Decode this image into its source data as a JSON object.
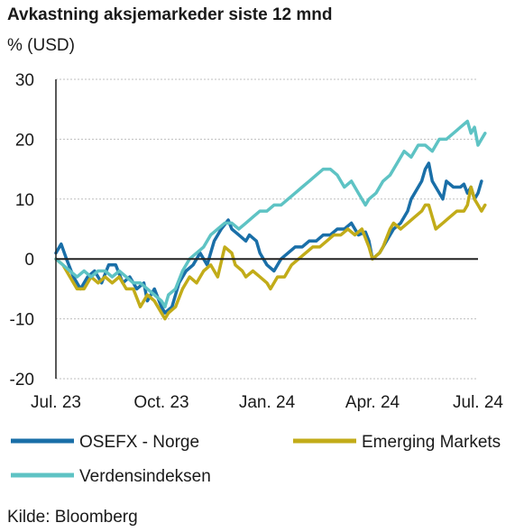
{
  "title": "Avkastning aksjemarkeder siste 12 mnd",
  "unit_label": "% (USD)",
  "source": "Kilde: Bloomberg",
  "colors": {
    "osefx": "#1a6fa8",
    "em": "#c2ac19",
    "world": "#5ec3c4",
    "axis": "#222222",
    "grid": "#bfbfbf"
  },
  "chart_data": {
    "type": "line",
    "ylim": [
      -20,
      30
    ],
    "yticks": [
      -20,
      -10,
      0,
      10,
      20,
      30
    ],
    "xlim": [
      0,
      12
    ],
    "xticks": [
      {
        "x": 0,
        "label": "Jul. 23"
      },
      {
        "x": 3,
        "label": "Oct. 23"
      },
      {
        "x": 6,
        "label": "Jan. 24"
      },
      {
        "x": 9,
        "label": "Apr. 24"
      },
      {
        "x": 12,
        "label": "Jul. 24"
      }
    ],
    "gridlines": "horizontal",
    "legend": "bottom",
    "series": [
      {
        "name": "OSEFX - Norge",
        "color_key": "osefx",
        "points": [
          [
            0,
            1
          ],
          [
            0.15,
            2.5
          ],
          [
            0.3,
            0
          ],
          [
            0.5,
            -3
          ],
          [
            0.7,
            -5
          ],
          [
            0.9,
            -3
          ],
          [
            1.1,
            -2
          ],
          [
            1.3,
            -4
          ],
          [
            1.5,
            -1
          ],
          [
            1.7,
            -1
          ],
          [
            1.9,
            -4
          ],
          [
            2.1,
            -3
          ],
          [
            2.3,
            -5
          ],
          [
            2.5,
            -4
          ],
          [
            2.6,
            -7
          ],
          [
            2.8,
            -5
          ],
          [
            3,
            -8
          ],
          [
            3.1,
            -9
          ],
          [
            3.3,
            -8
          ],
          [
            3.5,
            -4
          ],
          [
            3.7,
            -2
          ],
          [
            3.9,
            -1
          ],
          [
            4.1,
            1
          ],
          [
            4.3,
            -1
          ],
          [
            4.5,
            3
          ],
          [
            4.7,
            5
          ],
          [
            4.9,
            6.5
          ],
          [
            5.0,
            5
          ],
          [
            5.2,
            4
          ],
          [
            5.4,
            3
          ],
          [
            5.5,
            4
          ],
          [
            5.7,
            3
          ],
          [
            5.8,
            1
          ],
          [
            6.0,
            -1
          ],
          [
            6.2,
            -2
          ],
          [
            6.4,
            0
          ],
          [
            6.6,
            1
          ],
          [
            6.8,
            2
          ],
          [
            7.0,
            2
          ],
          [
            7.2,
            3
          ],
          [
            7.4,
            3
          ],
          [
            7.6,
            4
          ],
          [
            7.8,
            4
          ],
          [
            8.0,
            5
          ],
          [
            8.2,
            5
          ],
          [
            8.4,
            6
          ],
          [
            8.6,
            4
          ],
          [
            8.8,
            4.5
          ],
          [
            8.9,
            3
          ],
          [
            9.0,
            0
          ],
          [
            9.2,
            1
          ],
          [
            9.4,
            3
          ],
          [
            9.6,
            5
          ],
          [
            9.8,
            6
          ],
          [
            10.0,
            8
          ],
          [
            10.1,
            10
          ],
          [
            10.2,
            11
          ],
          [
            10.4,
            13
          ],
          [
            10.5,
            15
          ],
          [
            10.6,
            16
          ],
          [
            10.7,
            13
          ],
          [
            10.8,
            12
          ],
          [
            11.0,
            10
          ],
          [
            11.1,
            13
          ],
          [
            11.3,
            12
          ],
          [
            11.5,
            12
          ],
          [
            11.6,
            12.5
          ],
          [
            11.7,
            11
          ],
          [
            11.8,
            12
          ],
          [
            11.9,
            10
          ],
          [
            12.0,
            11
          ],
          [
            12.1,
            13
          ]
        ]
      },
      {
        "name": "Emerging Markets",
        "color_key": "em",
        "points": [
          [
            0,
            0
          ],
          [
            0.2,
            -1
          ],
          [
            0.4,
            -3
          ],
          [
            0.6,
            -5
          ],
          [
            0.8,
            -5
          ],
          [
            1.0,
            -3
          ],
          [
            1.2,
            -4
          ],
          [
            1.4,
            -3
          ],
          [
            1.6,
            -4
          ],
          [
            1.8,
            -3
          ],
          [
            2.0,
            -5
          ],
          [
            2.2,
            -5
          ],
          [
            2.4,
            -8
          ],
          [
            2.6,
            -6
          ],
          [
            2.8,
            -7
          ],
          [
            3.0,
            -9
          ],
          [
            3.1,
            -10
          ],
          [
            3.2,
            -9
          ],
          [
            3.4,
            -8
          ],
          [
            3.6,
            -5
          ],
          [
            3.8,
            -3
          ],
          [
            4.0,
            -4
          ],
          [
            4.2,
            -2
          ],
          [
            4.4,
            -1
          ],
          [
            4.6,
            -3
          ],
          [
            4.8,
            2
          ],
          [
            5.0,
            1
          ],
          [
            5.1,
            -1
          ],
          [
            5.3,
            -2
          ],
          [
            5.4,
            -3
          ],
          [
            5.6,
            -2
          ],
          [
            5.8,
            -3
          ],
          [
            6.0,
            -4
          ],
          [
            6.1,
            -5
          ],
          [
            6.3,
            -3
          ],
          [
            6.5,
            -3
          ],
          [
            6.7,
            -1
          ],
          [
            6.9,
            0
          ],
          [
            7.1,
            1
          ],
          [
            7.3,
            2
          ],
          [
            7.5,
            2
          ],
          [
            7.7,
            3
          ],
          [
            7.9,
            4
          ],
          [
            8.1,
            4
          ],
          [
            8.3,
            5
          ],
          [
            8.5,
            4
          ],
          [
            8.7,
            5
          ],
          [
            8.9,
            2
          ],
          [
            9.0,
            0
          ],
          [
            9.2,
            1
          ],
          [
            9.3,
            2
          ],
          [
            9.5,
            5
          ],
          [
            9.6,
            6
          ],
          [
            9.8,
            5
          ],
          [
            10.0,
            6
          ],
          [
            10.2,
            7
          ],
          [
            10.4,
            8
          ],
          [
            10.5,
            9
          ],
          [
            10.6,
            9
          ],
          [
            10.7,
            7
          ],
          [
            10.8,
            5
          ],
          [
            11.0,
            6
          ],
          [
            11.2,
            7
          ],
          [
            11.4,
            8
          ],
          [
            11.6,
            8
          ],
          [
            11.7,
            9
          ],
          [
            11.8,
            12
          ],
          [
            11.9,
            10
          ],
          [
            12.0,
            9
          ],
          [
            12.1,
            8
          ],
          [
            12.2,
            9
          ]
        ]
      },
      {
        "name": "Verdensindeksen",
        "color_key": "world",
        "points": [
          [
            0,
            0
          ],
          [
            0.2,
            -1
          ],
          [
            0.4,
            -2
          ],
          [
            0.6,
            -3
          ],
          [
            0.8,
            -2
          ],
          [
            1.0,
            -3
          ],
          [
            1.2,
            -2
          ],
          [
            1.4,
            -2
          ],
          [
            1.6,
            -3
          ],
          [
            1.8,
            -2
          ],
          [
            2.0,
            -3
          ],
          [
            2.2,
            -4
          ],
          [
            2.4,
            -4
          ],
          [
            2.6,
            -5
          ],
          [
            2.8,
            -6
          ],
          [
            3.0,
            -7
          ],
          [
            3.1,
            -8
          ],
          [
            3.2,
            -6
          ],
          [
            3.4,
            -5
          ],
          [
            3.6,
            -2
          ],
          [
            3.8,
            0
          ],
          [
            4.0,
            1
          ],
          [
            4.2,
            2
          ],
          [
            4.4,
            4
          ],
          [
            4.6,
            5
          ],
          [
            4.8,
            6
          ],
          [
            5.0,
            6
          ],
          [
            5.2,
            5
          ],
          [
            5.4,
            6
          ],
          [
            5.6,
            7
          ],
          [
            5.8,
            8
          ],
          [
            6.0,
            8
          ],
          [
            6.2,
            9
          ],
          [
            6.4,
            9
          ],
          [
            6.6,
            10
          ],
          [
            6.8,
            11
          ],
          [
            7.0,
            12
          ],
          [
            7.2,
            13
          ],
          [
            7.4,
            14
          ],
          [
            7.6,
            15
          ],
          [
            7.8,
            15
          ],
          [
            8.0,
            14
          ],
          [
            8.2,
            12
          ],
          [
            8.4,
            13
          ],
          [
            8.6,
            11
          ],
          [
            8.8,
            9
          ],
          [
            8.9,
            10
          ],
          [
            9.1,
            11
          ],
          [
            9.3,
            13
          ],
          [
            9.5,
            14
          ],
          [
            9.7,
            16
          ],
          [
            9.9,
            18
          ],
          [
            10.1,
            17
          ],
          [
            10.3,
            19
          ],
          [
            10.5,
            19
          ],
          [
            10.7,
            18
          ],
          [
            10.9,
            20
          ],
          [
            11.1,
            20
          ],
          [
            11.3,
            21
          ],
          [
            11.5,
            22
          ],
          [
            11.7,
            23
          ],
          [
            11.8,
            21
          ],
          [
            11.9,
            22
          ],
          [
            12.0,
            19
          ],
          [
            12.1,
            20
          ],
          [
            12.2,
            21
          ]
        ]
      }
    ]
  }
}
